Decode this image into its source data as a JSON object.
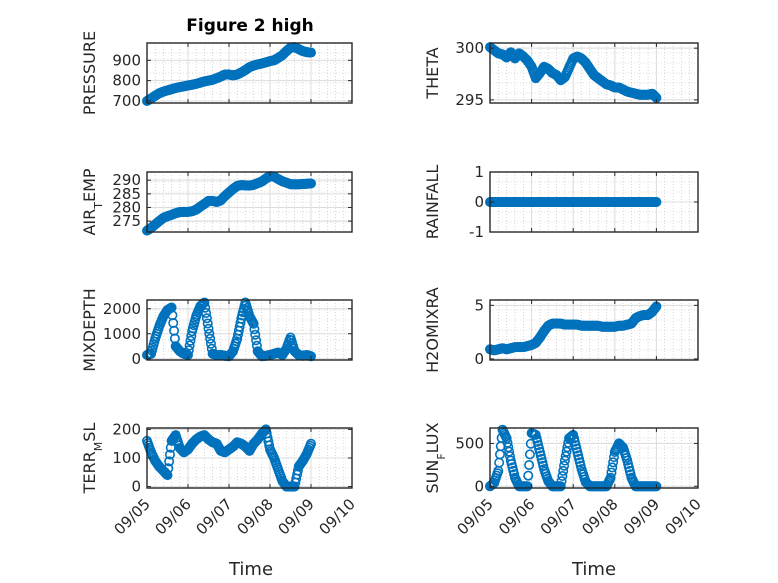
{
  "figure": {
    "title": "Figure 2 high",
    "xlabel": "Time"
  },
  "colors": {
    "marker": "#0072BD",
    "axis": "#262626",
    "grid": "#bdbdbd"
  },
  "x_ticks": [
    "09/05",
    "09/06",
    "09/07",
    "09/08",
    "09/09",
    "09/10"
  ],
  "chart_data": [
    {
      "type": "scatter",
      "panel": "left-1",
      "ylabel": "PRESSURE",
      "yticks": [
        "700",
        "800",
        "900"
      ],
      "ylim": [
        690,
        985
      ],
      "xlim": [
        0,
        5
      ],
      "grid": true,
      "x": [
        0.0,
        0.1,
        0.2,
        0.3,
        0.4,
        0.5,
        0.6,
        0.7,
        0.8,
        0.9,
        1.0,
        1.1,
        1.2,
        1.3,
        1.4,
        1.5,
        1.6,
        1.7,
        1.8,
        1.9,
        2.0,
        2.1,
        2.2,
        2.3,
        2.4,
        2.5,
        2.6,
        2.7,
        2.8,
        2.9,
        3.0,
        3.1,
        3.2,
        3.3,
        3.4,
        3.5,
        3.6,
        3.7,
        3.8,
        3.9,
        4.0
      ],
      "y": [
        700,
        712,
        726,
        738,
        746,
        752,
        758,
        764,
        768,
        772,
        776,
        780,
        784,
        790,
        796,
        800,
        804,
        812,
        820,
        830,
        830,
        826,
        830,
        840,
        852,
        866,
        874,
        880,
        884,
        890,
        896,
        900,
        912,
        925,
        945,
        962,
        965,
        955,
        945,
        940,
        938
      ]
    },
    {
      "type": "scatter",
      "panel": "right-1",
      "ylabel": "THETA",
      "yticks": [
        "295",
        "300"
      ],
      "ylim": [
        294.7,
        300.5
      ],
      "xlim": [
        0,
        5
      ],
      "grid": true,
      "x": [
        0.0,
        0.1,
        0.2,
        0.3,
        0.4,
        0.5,
        0.6,
        0.7,
        0.8,
        0.9,
        1.0,
        1.1,
        1.2,
        1.3,
        1.4,
        1.5,
        1.6,
        1.7,
        1.8,
        1.9,
        2.0,
        2.1,
        2.2,
        2.3,
        2.4,
        2.5,
        2.6,
        2.7,
        2.8,
        2.9,
        3.0,
        3.1,
        3.2,
        3.3,
        3.4,
        3.5,
        3.6,
        3.7,
        3.8,
        3.9,
        4.0
      ],
      "y": [
        300.1,
        299.8,
        299.5,
        299.4,
        299.1,
        299.6,
        299.0,
        299.5,
        299.2,
        298.8,
        298.2,
        297.1,
        297.6,
        298.2,
        298.0,
        297.6,
        297.4,
        296.9,
        297.2,
        298.1,
        299.0,
        299.2,
        299.0,
        298.6,
        298.0,
        297.4,
        297.1,
        296.8,
        296.5,
        296.4,
        296.2,
        296.2,
        296.0,
        295.8,
        295.7,
        295.6,
        295.5,
        295.5,
        295.5,
        295.6,
        295.2
      ]
    },
    {
      "type": "scatter",
      "panel": "left-2",
      "ylabel": "AIR_TEMP",
      "yticks": [
        "275",
        "280",
        "285",
        "290"
      ],
      "ylim": [
        271,
        293
      ],
      "xlim": [
        0,
        5
      ],
      "grid": true,
      "x": [
        0.0,
        0.1,
        0.2,
        0.3,
        0.4,
        0.5,
        0.6,
        0.7,
        0.8,
        0.9,
        1.0,
        1.1,
        1.2,
        1.3,
        1.4,
        1.5,
        1.6,
        1.7,
        1.8,
        1.9,
        2.0,
        2.1,
        2.2,
        2.3,
        2.4,
        2.5,
        2.6,
        2.7,
        2.8,
        2.9,
        3.0,
        3.1,
        3.2,
        3.3,
        3.4,
        3.5,
        3.6,
        3.7,
        3.8,
        3.9,
        4.0
      ],
      "y": [
        271.5,
        272.5,
        273.8,
        275,
        276.2,
        276.8,
        277.3,
        277.9,
        278.3,
        278.4,
        278.4,
        278.6,
        279.2,
        280.3,
        281.3,
        282.4,
        282.4,
        282,
        282.6,
        284.2,
        285.5,
        286.8,
        287.9,
        288.2,
        288.1,
        288,
        288.3,
        288.9,
        289.5,
        290.6,
        291.5,
        291.3,
        290.4,
        289.6,
        289.1,
        288.5,
        288.5,
        288.5,
        288.6,
        288.7,
        288.8
      ]
    },
    {
      "type": "scatter",
      "panel": "right-2",
      "ylabel": "RAINFALL",
      "yticks": [
        "-1",
        "0",
        "1"
      ],
      "ylim": [
        -1,
        1
      ],
      "xlim": [
        0,
        5
      ],
      "grid": true,
      "x": [
        0.0,
        0.1,
        0.2,
        0.3,
        0.4,
        0.5,
        0.6,
        0.7,
        0.8,
        0.9,
        1.0,
        1.1,
        1.2,
        1.3,
        1.4,
        1.5,
        1.6,
        1.7,
        1.8,
        1.9,
        2.0,
        2.1,
        2.2,
        2.3,
        2.4,
        2.5,
        2.6,
        2.7,
        2.8,
        2.9,
        3.0,
        3.1,
        3.2,
        3.3,
        3.4,
        3.5,
        3.6,
        3.7,
        3.8,
        3.9,
        4.0
      ],
      "y": [
        0,
        0,
        0,
        0,
        0,
        0,
        0,
        0,
        0,
        0,
        0,
        0,
        0,
        0,
        0,
        0,
        0,
        0,
        0,
        0,
        0,
        0,
        0,
        0,
        0,
        0,
        0,
        0,
        0,
        0,
        0,
        0,
        0,
        0,
        0,
        0,
        0,
        0,
        0,
        0,
        0
      ]
    },
    {
      "type": "scatter",
      "panel": "left-3",
      "ylabel": "MIXDEPTH",
      "yticks": [
        "0",
        "1000",
        "2000"
      ],
      "ylim": [
        -50,
        2350
      ],
      "xlim": [
        0,
        5
      ],
      "grid": true,
      "x": [
        0.0,
        0.1,
        0.2,
        0.3,
        0.4,
        0.5,
        0.6,
        0.7,
        0.8,
        0.9,
        1.0,
        1.1,
        1.2,
        1.3,
        1.4,
        1.5,
        1.6,
        1.7,
        1.8,
        1.9,
        2.0,
        2.1,
        2.2,
        2.3,
        2.4,
        2.5,
        2.6,
        2.7,
        2.8,
        2.9,
        3.0,
        3.1,
        3.2,
        3.3,
        3.4,
        3.5,
        3.6,
        3.7,
        3.8,
        3.9,
        4.0
      ],
      "y": [
        150,
        200,
        800,
        1300,
        1700,
        1950,
        2050,
        500,
        300,
        200,
        150,
        1100,
        1700,
        2100,
        2250,
        1200,
        200,
        150,
        150,
        120,
        100,
        300,
        800,
        1600,
        2250,
        1700,
        1400,
        300,
        100,
        120,
        150,
        200,
        250,
        150,
        400,
        850,
        300,
        150,
        120,
        150,
        100
      ]
    },
    {
      "type": "scatter",
      "panel": "right-3",
      "ylabel": "H2OMIXRA",
      "yticks": [
        "0",
        "5"
      ],
      "ylim": [
        -0.1,
        5.5
      ],
      "xlim": [
        0,
        5
      ],
      "grid": true,
      "x": [
        0.0,
        0.1,
        0.2,
        0.3,
        0.4,
        0.5,
        0.6,
        0.7,
        0.8,
        0.9,
        1.0,
        1.1,
        1.2,
        1.3,
        1.4,
        1.5,
        1.6,
        1.7,
        1.8,
        1.9,
        2.0,
        2.1,
        2.2,
        2.3,
        2.4,
        2.5,
        2.6,
        2.7,
        2.8,
        2.9,
        3.0,
        3.1,
        3.2,
        3.3,
        3.4,
        3.5,
        3.6,
        3.7,
        3.8,
        3.9,
        4.0
      ],
      "y": [
        0.9,
        0.8,
        0.9,
        1.0,
        0.9,
        1.0,
        1.1,
        1.1,
        1.1,
        1.2,
        1.3,
        1.5,
        2.0,
        2.6,
        3.1,
        3.3,
        3.3,
        3.3,
        3.2,
        3.2,
        3.2,
        3.2,
        3.1,
        3.1,
        3.1,
        3.1,
        3.1,
        3.0,
        3.0,
        3.0,
        3.0,
        3.1,
        3.1,
        3.2,
        3.3,
        3.8,
        4.0,
        4.1,
        4.1,
        4.4,
        4.9
      ]
    },
    {
      "type": "scatter",
      "panel": "left-4",
      "ylabel": "TERR_MSL",
      "yticks": [
        "0",
        "100",
        "200"
      ],
      "ylim": [
        -5,
        205
      ],
      "xlim": [
        0,
        5
      ],
      "grid": true,
      "x": [
        0.0,
        0.1,
        0.2,
        0.3,
        0.4,
        0.5,
        0.6,
        0.7,
        0.8,
        0.9,
        1.0,
        1.1,
        1.2,
        1.3,
        1.4,
        1.5,
        1.6,
        1.7,
        1.8,
        1.9,
        2.0,
        2.1,
        2.2,
        2.3,
        2.4,
        2.5,
        2.6,
        2.7,
        2.8,
        2.9,
        3.0,
        3.1,
        3.2,
        3.3,
        3.4,
        3.5,
        3.6,
        3.7,
        3.8,
        3.9,
        4.0
      ],
      "y": [
        160,
        120,
        90,
        70,
        55,
        40,
        160,
        180,
        135,
        120,
        130,
        150,
        165,
        175,
        180,
        165,
        155,
        150,
        125,
        120,
        130,
        140,
        155,
        150,
        140,
        125,
        150,
        165,
        185,
        200,
        130,
        100,
        60,
        20,
        0,
        0,
        0,
        70,
        90,
        115,
        150
      ]
    },
    {
      "type": "scatter",
      "panel": "right-4",
      "ylabel": "SUN_FLUX",
      "yticks": [
        "0",
        "500"
      ],
      "ylim": [
        -20,
        680
      ],
      "xlim": [
        0,
        5
      ],
      "grid": true,
      "x": [
        0.0,
        0.1,
        0.2,
        0.3,
        0.4,
        0.5,
        0.6,
        0.7,
        0.8,
        0.9,
        1.0,
        1.1,
        1.2,
        1.3,
        1.4,
        1.5,
        1.6,
        1.7,
        1.8,
        1.9,
        2.0,
        2.1,
        2.2,
        2.3,
        2.4,
        2.5,
        2.6,
        2.7,
        2.8,
        2.9,
        3.0,
        3.1,
        3.2,
        3.3,
        3.4,
        3.5,
        3.6,
        3.7,
        3.8,
        3.9,
        4.0
      ],
      "y": [
        0,
        40,
        180,
        660,
        560,
        300,
        100,
        0,
        0,
        0,
        620,
        600,
        400,
        200,
        60,
        0,
        0,
        0,
        300,
        560,
        600,
        400,
        200,
        50,
        0,
        0,
        0,
        0,
        0,
        100,
        400,
        500,
        450,
        300,
        100,
        0,
        0,
        0,
        0,
        0,
        0
      ]
    }
  ]
}
